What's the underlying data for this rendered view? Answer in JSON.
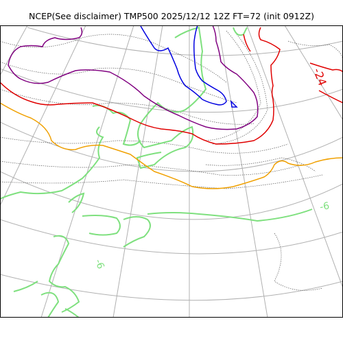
{
  "title": "NCEP(See disclaimer) TMP500 2025/12/12 12Z FT=72 (init 0912Z)",
  "contour_labels": [
    {
      "text": "-24",
      "color": "#e00000"
    },
    {
      "text": "-6",
      "color": "#7ee07e"
    },
    {
      "text": "-6",
      "color": "#7ee07e"
    }
  ],
  "colors": {
    "graticule": "#b0b0b0",
    "coastline": "#555555",
    "contour_red": "#e00000",
    "contour_purple": "#800080",
    "contour_blue": "#0000e0",
    "contour_orange": "#f0a000",
    "contour_green": "#7ee07e",
    "frame": "#000000"
  }
}
